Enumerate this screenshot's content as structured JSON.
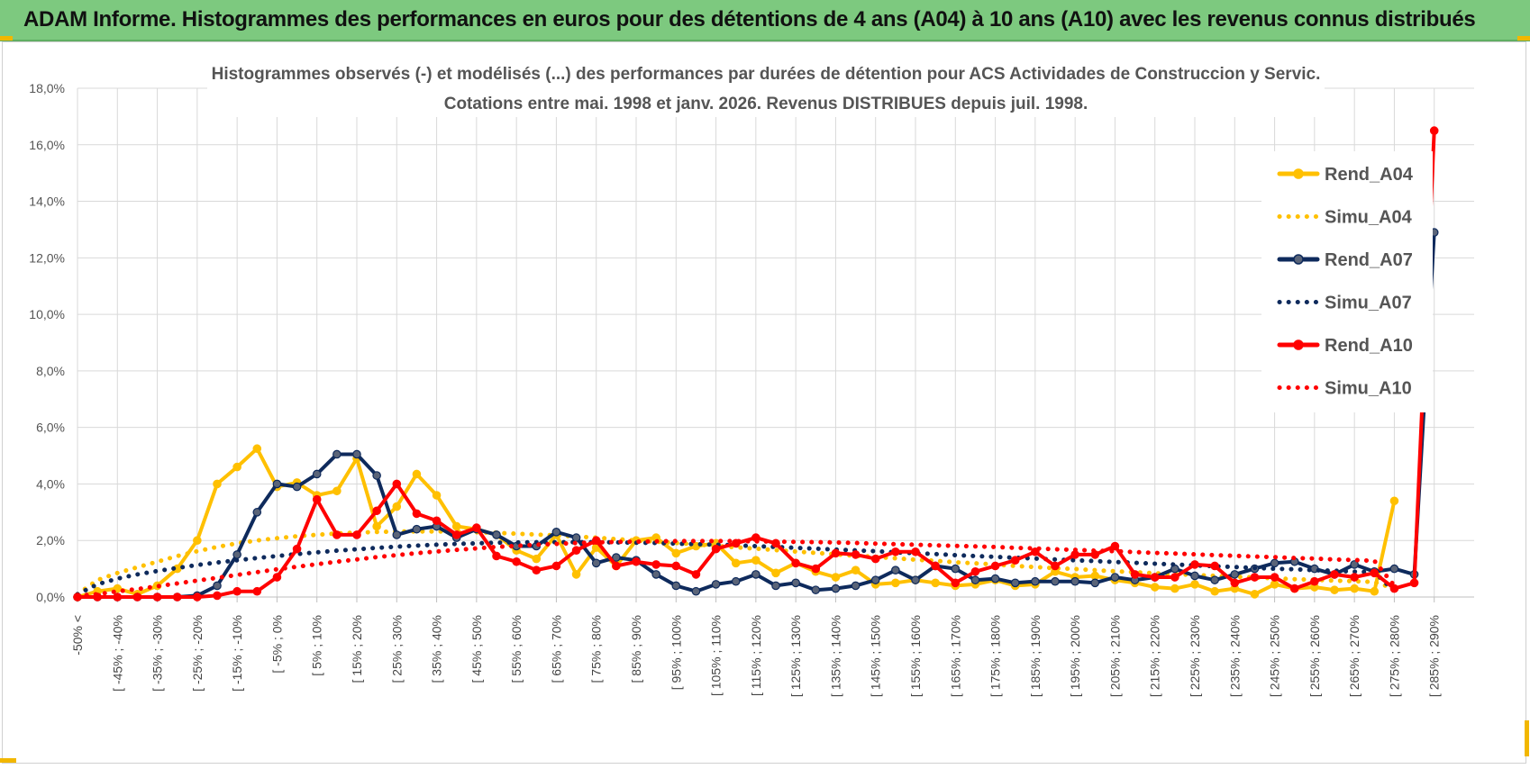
{
  "header": {
    "title": "ADAM Informe. Histogrammes des performances en euros pour des détentions de 4 ans (A04) à 10 ans (A10) avec les revenus connus distribués",
    "background": "#7dc97f"
  },
  "chart_data": {
    "type": "line",
    "title_line1": "Histogrammes observés (-) et modélisés (...) des performances par durées de détention pour ACS Actividades de Construccion y Servic.",
    "title_line2": "Cotations entre mai. 1998 et janv. 2026. Revenus DISTRIBUES depuis juil. 1998.",
    "ylim": [
      0,
      18
    ],
    "ytick_labels": [
      "0,0%",
      "2,0%",
      "4,0%",
      "6,0%",
      "8,0%",
      "10,0%",
      "12,0%",
      "14,0%",
      "16,0%",
      "18,0%"
    ],
    "x_labels": [
      "-50% <",
      "[ -45% ; -40%",
      "[ -35% ; -30%",
      "[ -25% ; -20%",
      "[ -15% ; -10%",
      "[ -5% ; 0%",
      "[ 5% ; 10%",
      "[ 15% ; 20%",
      "[ 25% ; 30%",
      "[ 35% ; 40%",
      "[ 45% ; 50%",
      "[ 55% ; 60%",
      "[ 65% ; 70%",
      "[ 75% ; 80%",
      "[ 85% ; 90%",
      "[ 95% ; 100%",
      "[ 105% ; 110%",
      "[ 115% ; 120%",
      "[ 125% ; 130%",
      "[ 135% ; 140%",
      "[ 145% ; 150%",
      "[ 155% ; 160%",
      "[ 165% ; 170%",
      "[ 175% ; 180%",
      "[ 185% ; 190%",
      "[ 195% ; 200%",
      "[ 205% ; 210%",
      "[ 215% ; 220%",
      "[ 225% ; 230%",
      "[ 235% ; 240%",
      "[ 245% ; 250%",
      "[ 255% ; 260%",
      "[ 265% ; 270%",
      "[ 275% ; 280%",
      "[ 285% ; 290%"
    ],
    "num_points": 70,
    "series": [
      {
        "name": "Rend_A04",
        "style": "solid",
        "color": "#ffc000",
        "values": [
          0,
          0.2,
          0.3,
          0.1,
          0.4,
          1.0,
          2.0,
          4.0,
          4.6,
          5.25,
          3.9,
          4.05,
          3.6,
          3.75,
          4.9,
          2.5,
          3.2,
          4.35,
          3.6,
          2.5,
          2.4,
          2.2,
          1.65,
          1.35,
          2.2,
          0.8,
          1.75,
          1.1,
          2.0,
          2.1,
          1.55,
          1.8,
          1.9,
          1.2,
          1.3,
          0.85,
          1.2,
          0.9,
          0.7,
          0.95,
          0.45,
          0.5,
          0.6,
          0.5,
          0.4,
          0.45,
          0.6,
          0.4,
          0.45,
          0.9,
          0.7,
          0.75,
          0.6,
          0.5,
          0.35,
          0.3,
          0.45,
          0.2,
          0.3,
          0.1,
          0.45,
          0.3,
          0.35,
          0.25,
          0.3,
          0.2,
          3.4
        ]
      },
      {
        "name": "Simu_A04",
        "style": "dotted",
        "color": "#ffc000",
        "values": [
          0.1,
          0.6,
          0.85,
          1.05,
          1.25,
          1.45,
          1.62,
          1.77,
          1.9,
          2.0,
          2.08,
          2.15,
          2.2,
          2.25,
          2.28,
          2.3,
          2.32,
          2.32,
          2.32,
          2.31,
          2.29,
          2.27,
          2.24,
          2.21,
          2.18,
          2.14,
          2.1,
          2.05,
          2.0,
          1.96,
          1.91,
          1.86,
          1.81,
          1.76,
          1.71,
          1.66,
          1.61,
          1.56,
          1.51,
          1.46,
          1.42,
          1.37,
          1.32,
          1.28,
          1.23,
          1.19,
          1.15,
          1.1,
          1.06,
          1.02,
          0.99,
          0.95,
          0.91,
          0.88,
          0.84,
          0.81,
          0.78,
          0.75,
          0.72,
          0.69,
          0.66,
          0.63,
          0.61,
          0.58,
          0.56,
          0.53,
          0.3
        ]
      },
      {
        "name": "Rend_A07",
        "style": "solid",
        "color": "#0e2a5c",
        "values": [
          0,
          0,
          0,
          0,
          0,
          0,
          0.05,
          0.4,
          1.5,
          3.0,
          4.0,
          3.9,
          4.35,
          5.05,
          5.05,
          4.3,
          2.2,
          2.4,
          2.5,
          2.1,
          2.4,
          2.2,
          1.8,
          1.8,
          2.3,
          2.1,
          1.2,
          1.4,
          1.3,
          0.8,
          0.4,
          0.2,
          0.45,
          0.55,
          0.8,
          0.4,
          0.5,
          0.25,
          0.3,
          0.4,
          0.6,
          0.95,
          0.6,
          1.1,
          1.0,
          0.6,
          0.65,
          0.5,
          0.55,
          0.55,
          0.55,
          0.5,
          0.7,
          0.6,
          0.7,
          1.0,
          0.75,
          0.6,
          0.8,
          1.0,
          1.2,
          1.25,
          1.0,
          0.8,
          1.15,
          0.9,
          1.0,
          0.8,
          12.9
        ]
      },
      {
        "name": "Simu_A07",
        "style": "dotted",
        "color": "#0e2a5c",
        "values": [
          0.1,
          0.45,
          0.65,
          0.8,
          0.92,
          1.03,
          1.13,
          1.22,
          1.3,
          1.38,
          1.45,
          1.52,
          1.58,
          1.64,
          1.69,
          1.74,
          1.78,
          1.82,
          1.85,
          1.88,
          1.9,
          1.92,
          1.93,
          1.94,
          1.94,
          1.94,
          1.94,
          1.93,
          1.92,
          1.91,
          1.89,
          1.87,
          1.85,
          1.83,
          1.8,
          1.77,
          1.74,
          1.71,
          1.68,
          1.65,
          1.62,
          1.58,
          1.55,
          1.52,
          1.48,
          1.45,
          1.42,
          1.39,
          1.36,
          1.33,
          1.3,
          1.27,
          1.24,
          1.21,
          1.18,
          1.15,
          1.12,
          1.09,
          1.06,
          1.03,
          1.0,
          0.98,
          0.95,
          0.93,
          0.9,
          0.88,
          0.2
        ]
      },
      {
        "name": "Rend_A10",
        "style": "solid",
        "color": "#ff0000",
        "values": [
          0,
          0,
          0,
          0,
          0,
          0,
          0,
          0.05,
          0.2,
          0.2,
          0.7,
          1.7,
          3.45,
          2.2,
          2.2,
          3.05,
          4.0,
          2.95,
          2.7,
          2.2,
          2.45,
          1.45,
          1.25,
          0.95,
          1.1,
          1.65,
          2.0,
          1.1,
          1.25,
          1.15,
          1.1,
          0.8,
          1.7,
          1.9,
          2.1,
          1.9,
          1.2,
          1.0,
          1.55,
          1.5,
          1.35,
          1.6,
          1.6,
          1.1,
          0.5,
          0.9,
          1.1,
          1.3,
          1.6,
          1.1,
          1.5,
          1.5,
          1.8,
          0.8,
          0.7,
          0.7,
          1.15,
          1.1,
          0.5,
          0.7,
          0.7,
          0.3,
          0.55,
          0.8,
          0.7,
          0.85,
          0.3,
          0.5,
          16.5
        ]
      },
      {
        "name": "Simu_A10",
        "style": "dotted",
        "color": "#ff0000",
        "values": [
          0.05,
          0.1,
          0.2,
          0.28,
          0.38,
          0.48,
          0.58,
          0.68,
          0.78,
          0.88,
          0.98,
          1.07,
          1.16,
          1.25,
          1.33,
          1.41,
          1.48,
          1.55,
          1.61,
          1.67,
          1.72,
          1.77,
          1.81,
          1.85,
          1.88,
          1.91,
          1.93,
          1.95,
          1.96,
          1.97,
          1.98,
          1.98,
          1.98,
          1.98,
          1.97,
          1.96,
          1.95,
          1.94,
          1.93,
          1.91,
          1.89,
          1.87,
          1.85,
          1.83,
          1.81,
          1.79,
          1.77,
          1.74,
          1.72,
          1.69,
          1.67,
          1.64,
          1.62,
          1.59,
          1.56,
          1.54,
          1.51,
          1.48,
          1.46,
          1.43,
          1.41,
          1.38,
          1.36,
          1.33,
          1.31,
          1.28,
          0.4
        ]
      }
    ],
    "legend_position": "top-right"
  }
}
